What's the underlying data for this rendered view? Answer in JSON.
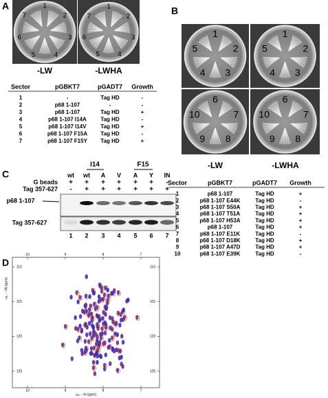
{
  "panel_a": {
    "label": "A",
    "plates": [
      {
        "sectors": [
          "1",
          "2",
          "3",
          "4",
          "5",
          "6",
          "7"
        ]
      },
      {
        "sectors": [
          "1",
          "2",
          "3",
          "4",
          "5",
          "6",
          "7"
        ]
      }
    ],
    "plate_labels": [
      "-LW",
      "-LWHA"
    ],
    "table": {
      "headers": [
        "Sector",
        "pGBKT7",
        "pGADT7",
        "Growth"
      ],
      "rows": [
        [
          "1",
          "-",
          "Tag HD",
          "-"
        ],
        [
          "2",
          "p68 1-107",
          "-",
          "-"
        ],
        [
          "3",
          "p68 1-107",
          "Tag HD",
          "+"
        ],
        [
          "4",
          "p68 1-107 I14A",
          "Tag HD",
          "-"
        ],
        [
          "5",
          "p68 1-107 I14V",
          "Tag HD",
          "+"
        ],
        [
          "6",
          "p68 1-107 F15A",
          "Tag HD",
          "-"
        ],
        [
          "7",
          "p68 1-107 F15Y",
          "Tag HD",
          "+"
        ]
      ]
    }
  },
  "panel_b": {
    "label": "B",
    "plates": [
      {
        "sectors": [
          "1",
          "2",
          "3",
          "4",
          "5"
        ]
      },
      {
        "sectors": [
          "1",
          "2",
          "3",
          "4",
          "5"
        ]
      },
      {
        "sectors": [
          "6",
          "7",
          "8",
          "9",
          "10"
        ]
      },
      {
        "sectors": [
          "6",
          "7",
          "8",
          "9",
          "10"
        ]
      }
    ],
    "plate_labels": [
      "-LW",
      "-LWHA"
    ],
    "table": {
      "headers": [
        "Sector",
        "pGBKT7",
        "pGADT7",
        "Growth"
      ],
      "rows": [
        [
          "1",
          "p68 1-107",
          "Tag HD",
          "+"
        ],
        [
          "2",
          "p68 1-107 E44K",
          "Tag HD",
          "-"
        ],
        [
          "3",
          "p68 1-107 S50A",
          "Tag HD",
          "+"
        ],
        [
          "4",
          "p68 1-107 T51A",
          "Tag HD",
          "+"
        ],
        [
          "5",
          "p68 1-107 H53A",
          "Tag HD",
          "+"
        ],
        [
          "6",
          "p68 1-107",
          "Tag HD",
          "+"
        ],
        [
          "7",
          "p68 1-107 E11K",
          "Tag HD",
          "-"
        ],
        [
          "8",
          "p68 1-107 D18K",
          "Tag HD",
          "+"
        ],
        [
          "9",
          "p68 1-107 A47D",
          "Tag HD",
          "+"
        ],
        [
          "10",
          "p68 1-107 E39K",
          "Tag HD",
          "-"
        ]
      ]
    }
  },
  "panel_c": {
    "label": "C",
    "groups": [
      "I14",
      "F15"
    ],
    "lane_headers": [
      "wt",
      "wt",
      "A",
      "V",
      "A",
      "Y",
      "IN"
    ],
    "rows": [
      {
        "name": "G beads",
        "signs": [
          "+",
          "+",
          "+",
          "+",
          "+",
          "+",
          "-"
        ]
      },
      {
        "name": "Tag 357-627",
        "signs": [
          "-",
          "+",
          "+",
          "+",
          "+",
          "+",
          "+"
        ]
      }
    ],
    "blot_labels": [
      "p68 1-107",
      "Tag 357-627"
    ],
    "lane_numbers": [
      "1",
      "2",
      "3",
      "4",
      "5",
      "6",
      "7"
    ]
  },
  "panel_d": {
    "label": "D",
    "x_label": "ω₂ - ¹H (ppm)",
    "y_label": "ω₁ - ¹⁵N (ppm)",
    "x_ticks": [
      10,
      9,
      8,
      7
    ],
    "y_ticks": [
      110,
      115,
      120,
      125
    ]
  }
}
